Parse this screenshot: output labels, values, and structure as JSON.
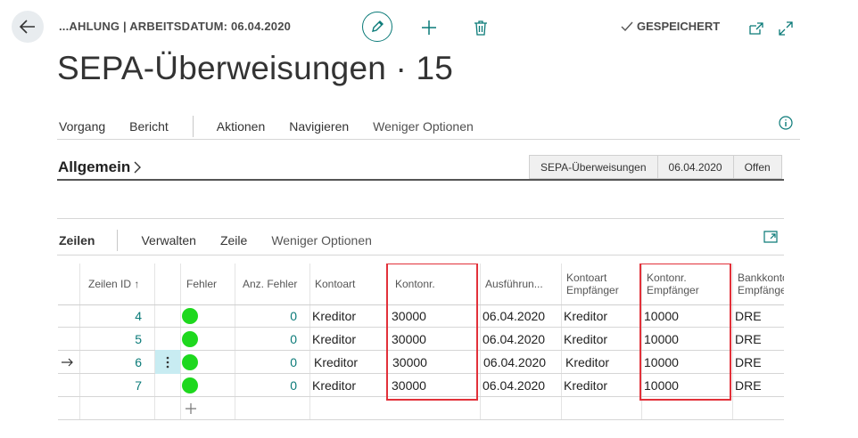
{
  "header": {
    "breadcrumb": "...AHLUNG | ARBEITSDATUM: 06.04.2020",
    "saved_label": "GESPEICHERT",
    "title": "SEPA-Überweisungen · 15"
  },
  "actions": {
    "items": [
      "Vorgang",
      "Bericht",
      "Aktionen",
      "Navigieren",
      "Weniger Optionen"
    ]
  },
  "general": {
    "title": "Allgemein",
    "chips": [
      "SEPA-Überweisungen",
      "06.04.2020",
      "Offen"
    ]
  },
  "lines": {
    "title": "Zeilen",
    "menu": [
      "Verwalten",
      "Zeile",
      "Weniger Optionen"
    ],
    "columns": {
      "id": "Zeilen ID ↑",
      "errors": "Fehler",
      "error_count": "Anz. Fehler",
      "account_type": "Kontoart",
      "account_no": "Kontonr.",
      "execution": "Ausführun...",
      "recipient_type_1": "Kontoart",
      "recipient_type_2": "Empfänger",
      "recipient_no_1": "Kontonr.",
      "recipient_no_2": "Empfänger",
      "bank_1": "Bankkonto",
      "bank_2": "Empfänger"
    },
    "rows": [
      {
        "id": "4",
        "error_count": "0",
        "account_type": "Kreditor",
        "account_no": "30000",
        "execution": "06.04.2020",
        "recipient_type": "Kreditor",
        "recipient_no": "10000",
        "bank": "DRE"
      },
      {
        "id": "5",
        "error_count": "0",
        "account_type": "Kreditor",
        "account_no": "30000",
        "execution": "06.04.2020",
        "recipient_type": "Kreditor",
        "recipient_no": "10000",
        "bank": "DRE"
      },
      {
        "id": "6",
        "error_count": "0",
        "account_type": "Kreditor",
        "account_no": "30000",
        "execution": "06.04.2020",
        "recipient_type": "Kreditor",
        "recipient_no": "10000",
        "bank": "DRE"
      },
      {
        "id": "7",
        "error_count": "0",
        "account_type": "Kreditor",
        "account_no": "30000",
        "execution": "06.04.2020",
        "recipient_type": "Kreditor",
        "recipient_no": "10000",
        "bank": "DRE"
      }
    ]
  },
  "colors": {
    "accent": "#0a7a78",
    "highlight_border": "#e2313a",
    "status_ok": "#1ed81e",
    "selected_cell": "#c8ecf2"
  },
  "icons": [
    "back-arrow-icon",
    "pencil-icon",
    "plus-icon",
    "trash-icon",
    "checkmark-icon",
    "open-in-new-icon",
    "expand-icon",
    "info-icon",
    "chevron-right-icon",
    "expand-lines-icon",
    "sort-up-icon",
    "row-arrow-icon",
    "ellipsis-vertical-icon",
    "add-row-icon"
  ]
}
